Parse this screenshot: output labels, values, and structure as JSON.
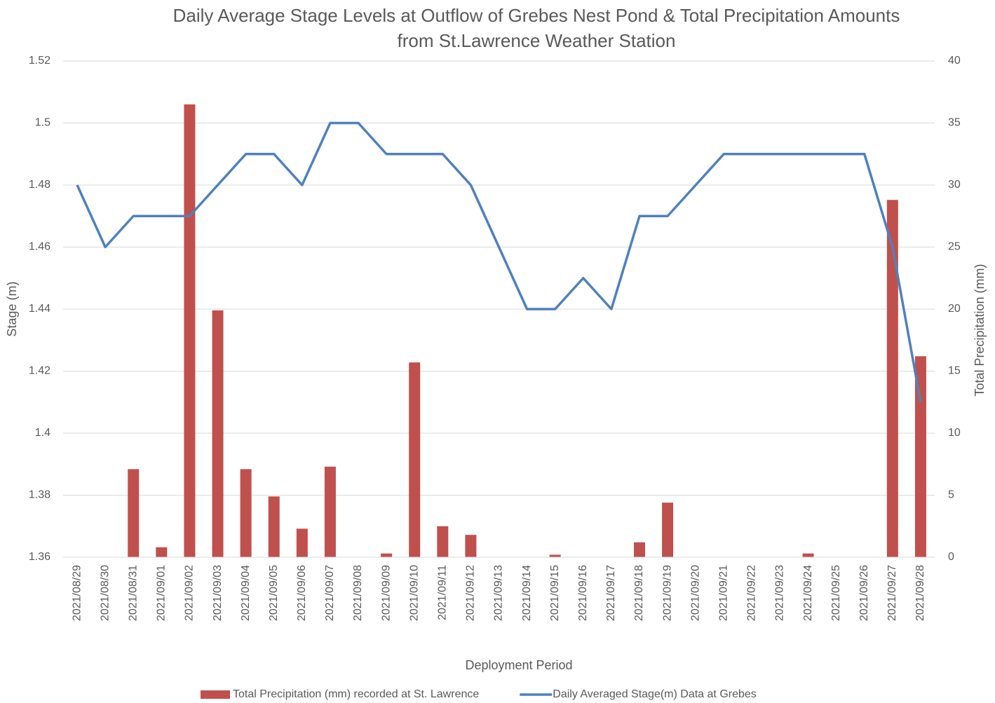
{
  "chart_data": {
    "type": "bar-line",
    "title": [
      "Daily Average Stage Levels at Outflow of Grebes Nest Pond & Total Precipitation Amounts",
      "from St.Lawrence Weather Station"
    ],
    "x_label": "Deployment Period",
    "y_label": "Stage (m)",
    "y2_label": "Total Precipitation (mm)",
    "categories": [
      "2021/08/29",
      "2021/08/30",
      "2021/08/31",
      "2021/09/01",
      "2021/09/02",
      "2021/09/03",
      "2021/09/04",
      "2021/09/05",
      "2021/09/06",
      "2021/09/07",
      "2021/09/08",
      "2021/09/09",
      "2021/09/10",
      "2021/09/11",
      "2021/09/12",
      "2021/09/13",
      "2021/09/14",
      "2021/09/15",
      "2021/09/16",
      "2021/09/17",
      "2021/09/18",
      "2021/09/19",
      "2021/09/20",
      "2021/09/21",
      "2021/09/22",
      "2021/09/23",
      "2021/09/24",
      "2021/09/25",
      "2021/09/26",
      "2021/09/27",
      "2021/09/28"
    ],
    "series": [
      {
        "name": "Total Precipitation (mm) recorded at St. Lawrence",
        "type": "bar",
        "axis": "y2",
        "color": "#c0504d",
        "values": [
          0,
          0,
          7.1,
          0.8,
          36.5,
          19.9,
          7.1,
          4.9,
          2.3,
          7.3,
          0,
          0.3,
          15.7,
          2.5,
          1.8,
          0,
          0,
          0.2,
          0,
          0,
          1.2,
          4.4,
          0,
          0,
          0,
          0,
          0.3,
          0,
          0,
          28.8,
          16.2
        ]
      },
      {
        "name": "Daily Averaged Stage(m) Data at Grebes",
        "type": "line",
        "axis": "y",
        "color": "#4f81bd",
        "values": [
          1.48,
          1.46,
          1.47,
          1.47,
          1.47,
          1.48,
          1.49,
          1.49,
          1.48,
          1.5,
          1.5,
          1.49,
          1.49,
          1.49,
          1.48,
          1.46,
          1.44,
          1.44,
          1.45,
          1.44,
          1.47,
          1.47,
          1.48,
          1.49,
          1.49,
          1.49,
          1.49,
          1.49,
          1.49,
          1.46,
          1.41
        ]
      }
    ],
    "ylim": [
      1.36,
      1.52
    ],
    "yticks": [
      1.36,
      1.38,
      1.4,
      1.42,
      1.44,
      1.46,
      1.48,
      1.5,
      1.52
    ],
    "y2lim": [
      0,
      40
    ],
    "y2ticks": [
      0,
      5,
      10,
      15,
      20,
      25,
      30,
      35,
      40
    ],
    "grid": true,
    "legend": "bottom"
  }
}
